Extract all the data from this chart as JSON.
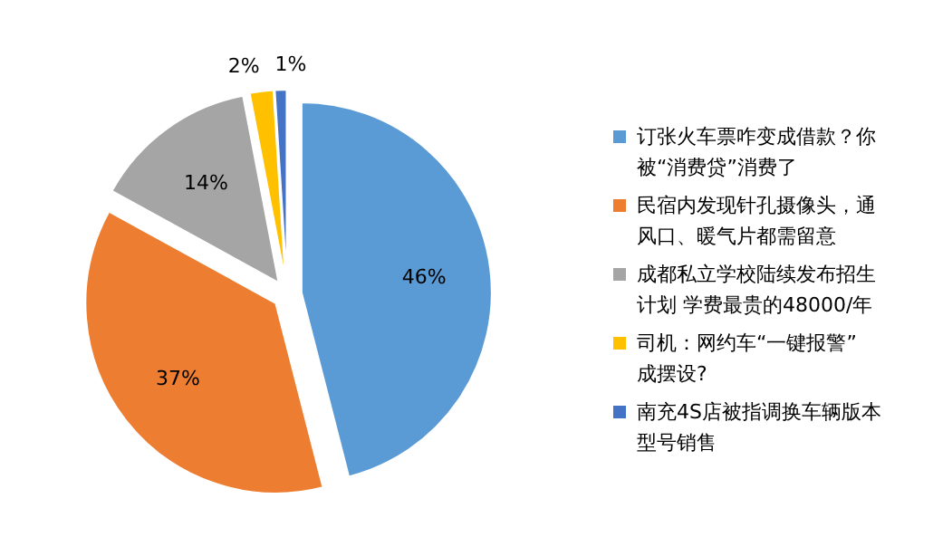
{
  "chart_data": {
    "type": "pie",
    "categories": [
      "订张火车票咋变成借款？你被“消费贷”消费了",
      "民宿内发现针孔摄像头，通风口、暖气片都需留意",
      "成都私立学校陆续发布招生计划 学费最贵的48000/年",
      "司机：网约车“一键报警”成摆设?",
      "南充4S店被指调换车辆版本型号销售"
    ],
    "values": [
      46,
      37,
      14,
      2,
      1
    ],
    "colors": [
      "#5b9bd5",
      "#ed7d31",
      "#a5a5a5",
      "#ffc000",
      "#4472c4"
    ],
    "value_labels": [
      "46%",
      "37%",
      "14%",
      "2%",
      "1%"
    ],
    "legend": "right"
  }
}
